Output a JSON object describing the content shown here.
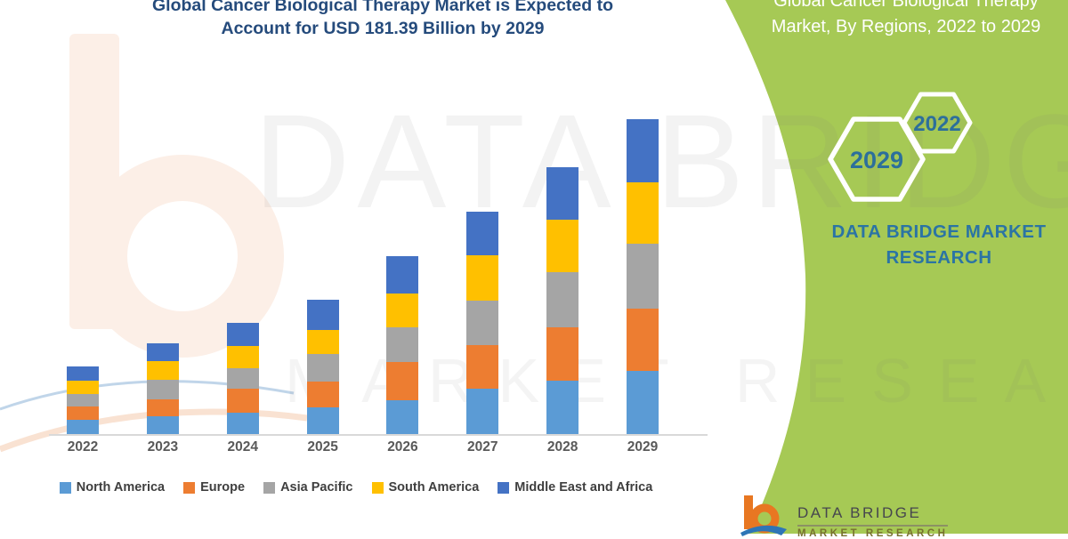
{
  "header": {
    "title_line1": "Global Cancer Biological Therapy Market is Expected to",
    "title_line2": "Account for USD 181.39 Billion by 2029"
  },
  "side_panel": {
    "bg_color": "#A6C955",
    "title_line1": "Global Cancer Biological Therapy",
    "title_line2": "Market, By Regions, 2022 to 2029",
    "hexagon_end_year": "2029",
    "hexagon_start_year": "2022",
    "brand_line1": "DATA BRIDGE MARKET",
    "brand_line2": "RESEARCH",
    "brand_text_color": "#2B74A4"
  },
  "watermark": {
    "line1": "DATA BRIDGE",
    "line2": "MARKET RESEARCH"
  },
  "footer_logo": {
    "name": "DATA BRIDGE",
    "sub": "MARKET RESEARCH"
  },
  "chart_data": {
    "type": "bar",
    "stacked": true,
    "unit": "USD Billion",
    "categories": [
      "2022",
      "2023",
      "2024",
      "2025",
      "2026",
      "2027",
      "2028",
      "2029"
    ],
    "series": [
      {
        "name": "North America",
        "color": "#5B9BD5",
        "values": [
          8.0,
          10.1,
          12.3,
          15.2,
          19.7,
          26.0,
          31.0,
          36.5
        ]
      },
      {
        "name": "Europe",
        "color": "#ED7D31",
        "values": [
          8.0,
          9.9,
          13.7,
          15.0,
          21.7,
          25.1,
          30.4,
          36.0
        ]
      },
      {
        "name": "Asia Pacific",
        "color": "#A5A5A5",
        "values": [
          7.3,
          11.1,
          11.9,
          15.7,
          20.0,
          25.6,
          31.9,
          37.0
        ]
      },
      {
        "name": "South America",
        "color": "#FFC000",
        "values": [
          7.2,
          11.1,
          12.8,
          14.2,
          19.8,
          26.1,
          30.1,
          35.5
        ]
      },
      {
        "name": "Middle East and Africa",
        "color": "#4472C4",
        "values": [
          8.2,
          9.9,
          13.2,
          17.1,
          21.3,
          25.3,
          30.2,
          36.39
        ]
      }
    ],
    "totals": [
      38.7,
      52.1,
      63.9,
      77.2,
      102.5,
      128.1,
      153.6,
      181.39
    ],
    "ylim": [
      0,
      190
    ],
    "gridlines": false,
    "legend_position": "bottom",
    "axis_line_color": "#D9D9D9"
  }
}
